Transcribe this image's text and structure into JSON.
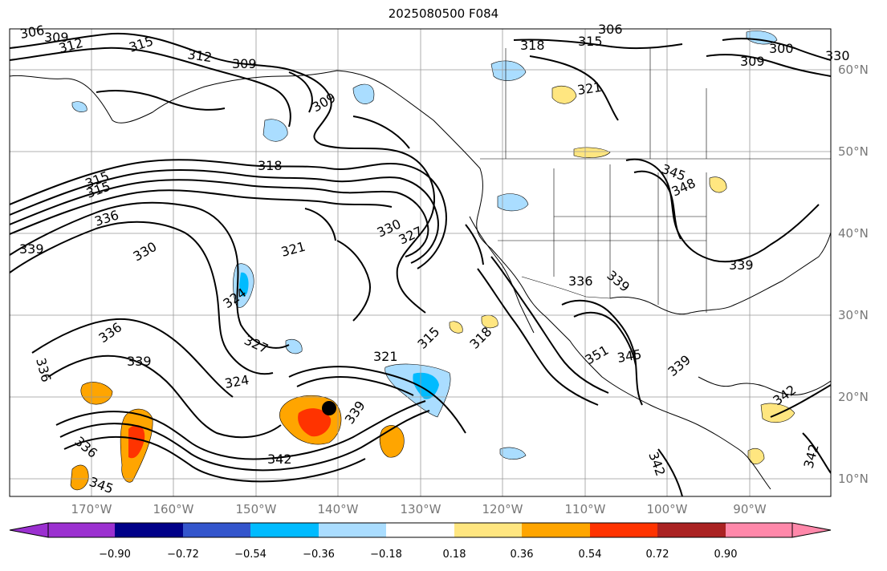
{
  "title": "2025080500 F084",
  "lon_labels": [
    "170°W",
    "160°W",
    "150°W",
    "140°W",
    "130°W",
    "120°W",
    "110°W",
    "100°W",
    "90°W"
  ],
  "lat_labels": [
    "60°N",
    "50°N",
    "40°N",
    "30°N",
    "20°N",
    "10°N"
  ],
  "colorbar": {
    "ticks": [
      "−0.90",
      "−0.72",
      "−0.54",
      "−0.36",
      "−0.18",
      "0.18",
      "0.36",
      "0.54",
      "0.72",
      "0.90"
    ],
    "colors": [
      "#9b30d0",
      "#000088",
      "#3355cc",
      "#00bbff",
      "#aaddff",
      "#ffffff",
      "#ffe680",
      "#ffa500",
      "#ff3300",
      "#aa2222",
      "#ff88aa"
    ]
  },
  "contour_labels": [
    "306",
    "309",
    "312",
    "315",
    "312",
    "309",
    "318",
    "315",
    "306",
    "300",
    "309",
    "321",
    "309",
    "318",
    "315",
    "315",
    "336",
    "339",
    "330",
    "330",
    "321",
    "327",
    "345",
    "348",
    "336",
    "339",
    "324",
    "327",
    "336",
    "339",
    "315",
    "318",
    "321",
    "336",
    "339",
    "324",
    "345",
    "342",
    "339",
    "342",
    "342",
    "339",
    "345",
    "351",
    "336",
    "342",
    "330"
  ],
  "marker": "storm-center"
}
